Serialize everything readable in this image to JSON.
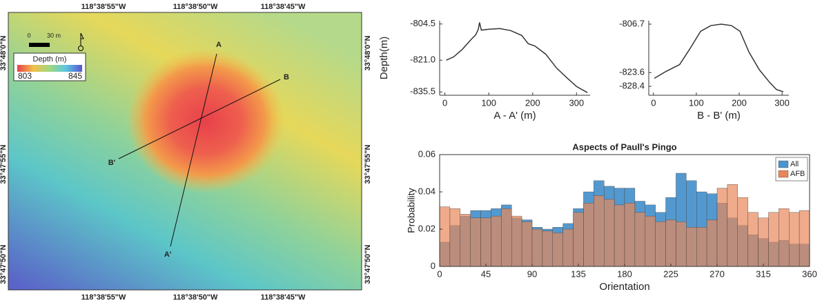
{
  "map": {
    "lon_labels": [
      "118°38'55\"W",
      "118°38'50\"W",
      "118°38'45\"W"
    ],
    "lat_labels": [
      "33°48'0\"N",
      "33°47'55\"N",
      "33°47'50\"N"
    ],
    "scale_labels": [
      "0",
      "30 m"
    ],
    "legend_title": "Depth (m)",
    "legend_min": 803,
    "legend_max": 845,
    "profile_labels": [
      "A",
      "A'",
      "B",
      "B'"
    ]
  },
  "chart_data": [
    {
      "type": "line",
      "xlabel": "A - A' (m)",
      "ylabel": "Depth(m)",
      "color": "#333333",
      "x": [
        3,
        20,
        40,
        60,
        70,
        76,
        79,
        83,
        100,
        125,
        150,
        175,
        190,
        205,
        230,
        255,
        280,
        300,
        325
      ],
      "values": [
        -821,
        -819.5,
        -816,
        -811.5,
        -809.5,
        -807,
        -803.8,
        -807.3,
        -806.9,
        -806.6,
        -807.5,
        -809.7,
        -813.5,
        -814.5,
        -818.3,
        -824.7,
        -829.4,
        -833,
        -835.8
      ],
      "xlim": [
        -12,
        331
      ],
      "ylim": [
        -837,
        -803
      ],
      "xticks": [
        0,
        100,
        200,
        300
      ],
      "yticks": [
        -835.5,
        {
          "value": -821,
          "label": "-821.0"
        },
        -804.5
      ]
    },
    {
      "type": "line",
      "xlabel": "B - B' (m)",
      "color": "#333333",
      "x": [
        2,
        29,
        61,
        85,
        110,
        134,
        158,
        182,
        202,
        223,
        247,
        271,
        287,
        303
      ],
      "values": [
        -825.6,
        -823.2,
        -820.8,
        -815.3,
        -809.2,
        -807.2,
        -806.7,
        -807.2,
        -809.2,
        -816.5,
        -822.6,
        -827,
        -829.5,
        -830.3
      ],
      "xlim": [
        -11,
        316
      ],
      "ylim": [
        -831.5,
        -805.5
      ],
      "xticks": [
        0,
        100,
        200,
        300
      ],
      "yticks": [
        -828.4,
        -823.6,
        -806.7
      ]
    },
    {
      "type": "histogram",
      "title": "Aspects of Paull's Pingo",
      "xlabel": "Orientation",
      "ylabel": "Probability",
      "bins": [
        0,
        10,
        20,
        30,
        40,
        50,
        60,
        70,
        80,
        90,
        100,
        110,
        120,
        130,
        140,
        150,
        160,
        170,
        180,
        190,
        200,
        210,
        220,
        230,
        240,
        250,
        260,
        270,
        280,
        290,
        300,
        310,
        320,
        330,
        340,
        350,
        360
      ],
      "series": [
        {
          "name": "All",
          "color": "#4a94cc",
          "values": [
            0.013,
            0.022,
            0.027,
            0.03,
            0.03,
            0.031,
            0.033,
            0.026,
            0.025,
            0.021,
            0.02,
            0.021,
            0.023,
            0.031,
            0.04,
            0.046,
            0.043,
            0.042,
            0.042,
            0.035,
            0.033,
            0.029,
            0.037,
            0.05,
            0.046,
            0.04,
            0.039,
            0.034,
            0.026,
            0.022,
            0.017,
            0.015,
            0.013,
            0.014,
            0.012,
            0.012
          ]
        },
        {
          "name": "AFB",
          "color": "#e8875a",
          "values": [
            0.032,
            0.031,
            0.028,
            0.026,
            0.026,
            0.027,
            0.031,
            0.027,
            0.024,
            0.02,
            0.019,
            0.018,
            0.02,
            0.029,
            0.034,
            0.038,
            0.036,
            0.033,
            0.034,
            0.029,
            0.027,
            0.024,
            0.025,
            0.024,
            0.021,
            0.021,
            0.025,
            0.042,
            0.044,
            0.037,
            0.029,
            0.026,
            0.029,
            0.031,
            0.029,
            0.03
          ]
        }
      ],
      "xlim": [
        0,
        360
      ],
      "ylim": [
        0,
        0.06
      ],
      "xticks": [
        0,
        45,
        90,
        135,
        180,
        225,
        270,
        315,
        360
      ],
      "yticks": [
        0,
        0.02,
        0.04,
        0.06
      ],
      "legend": "upper right"
    }
  ]
}
